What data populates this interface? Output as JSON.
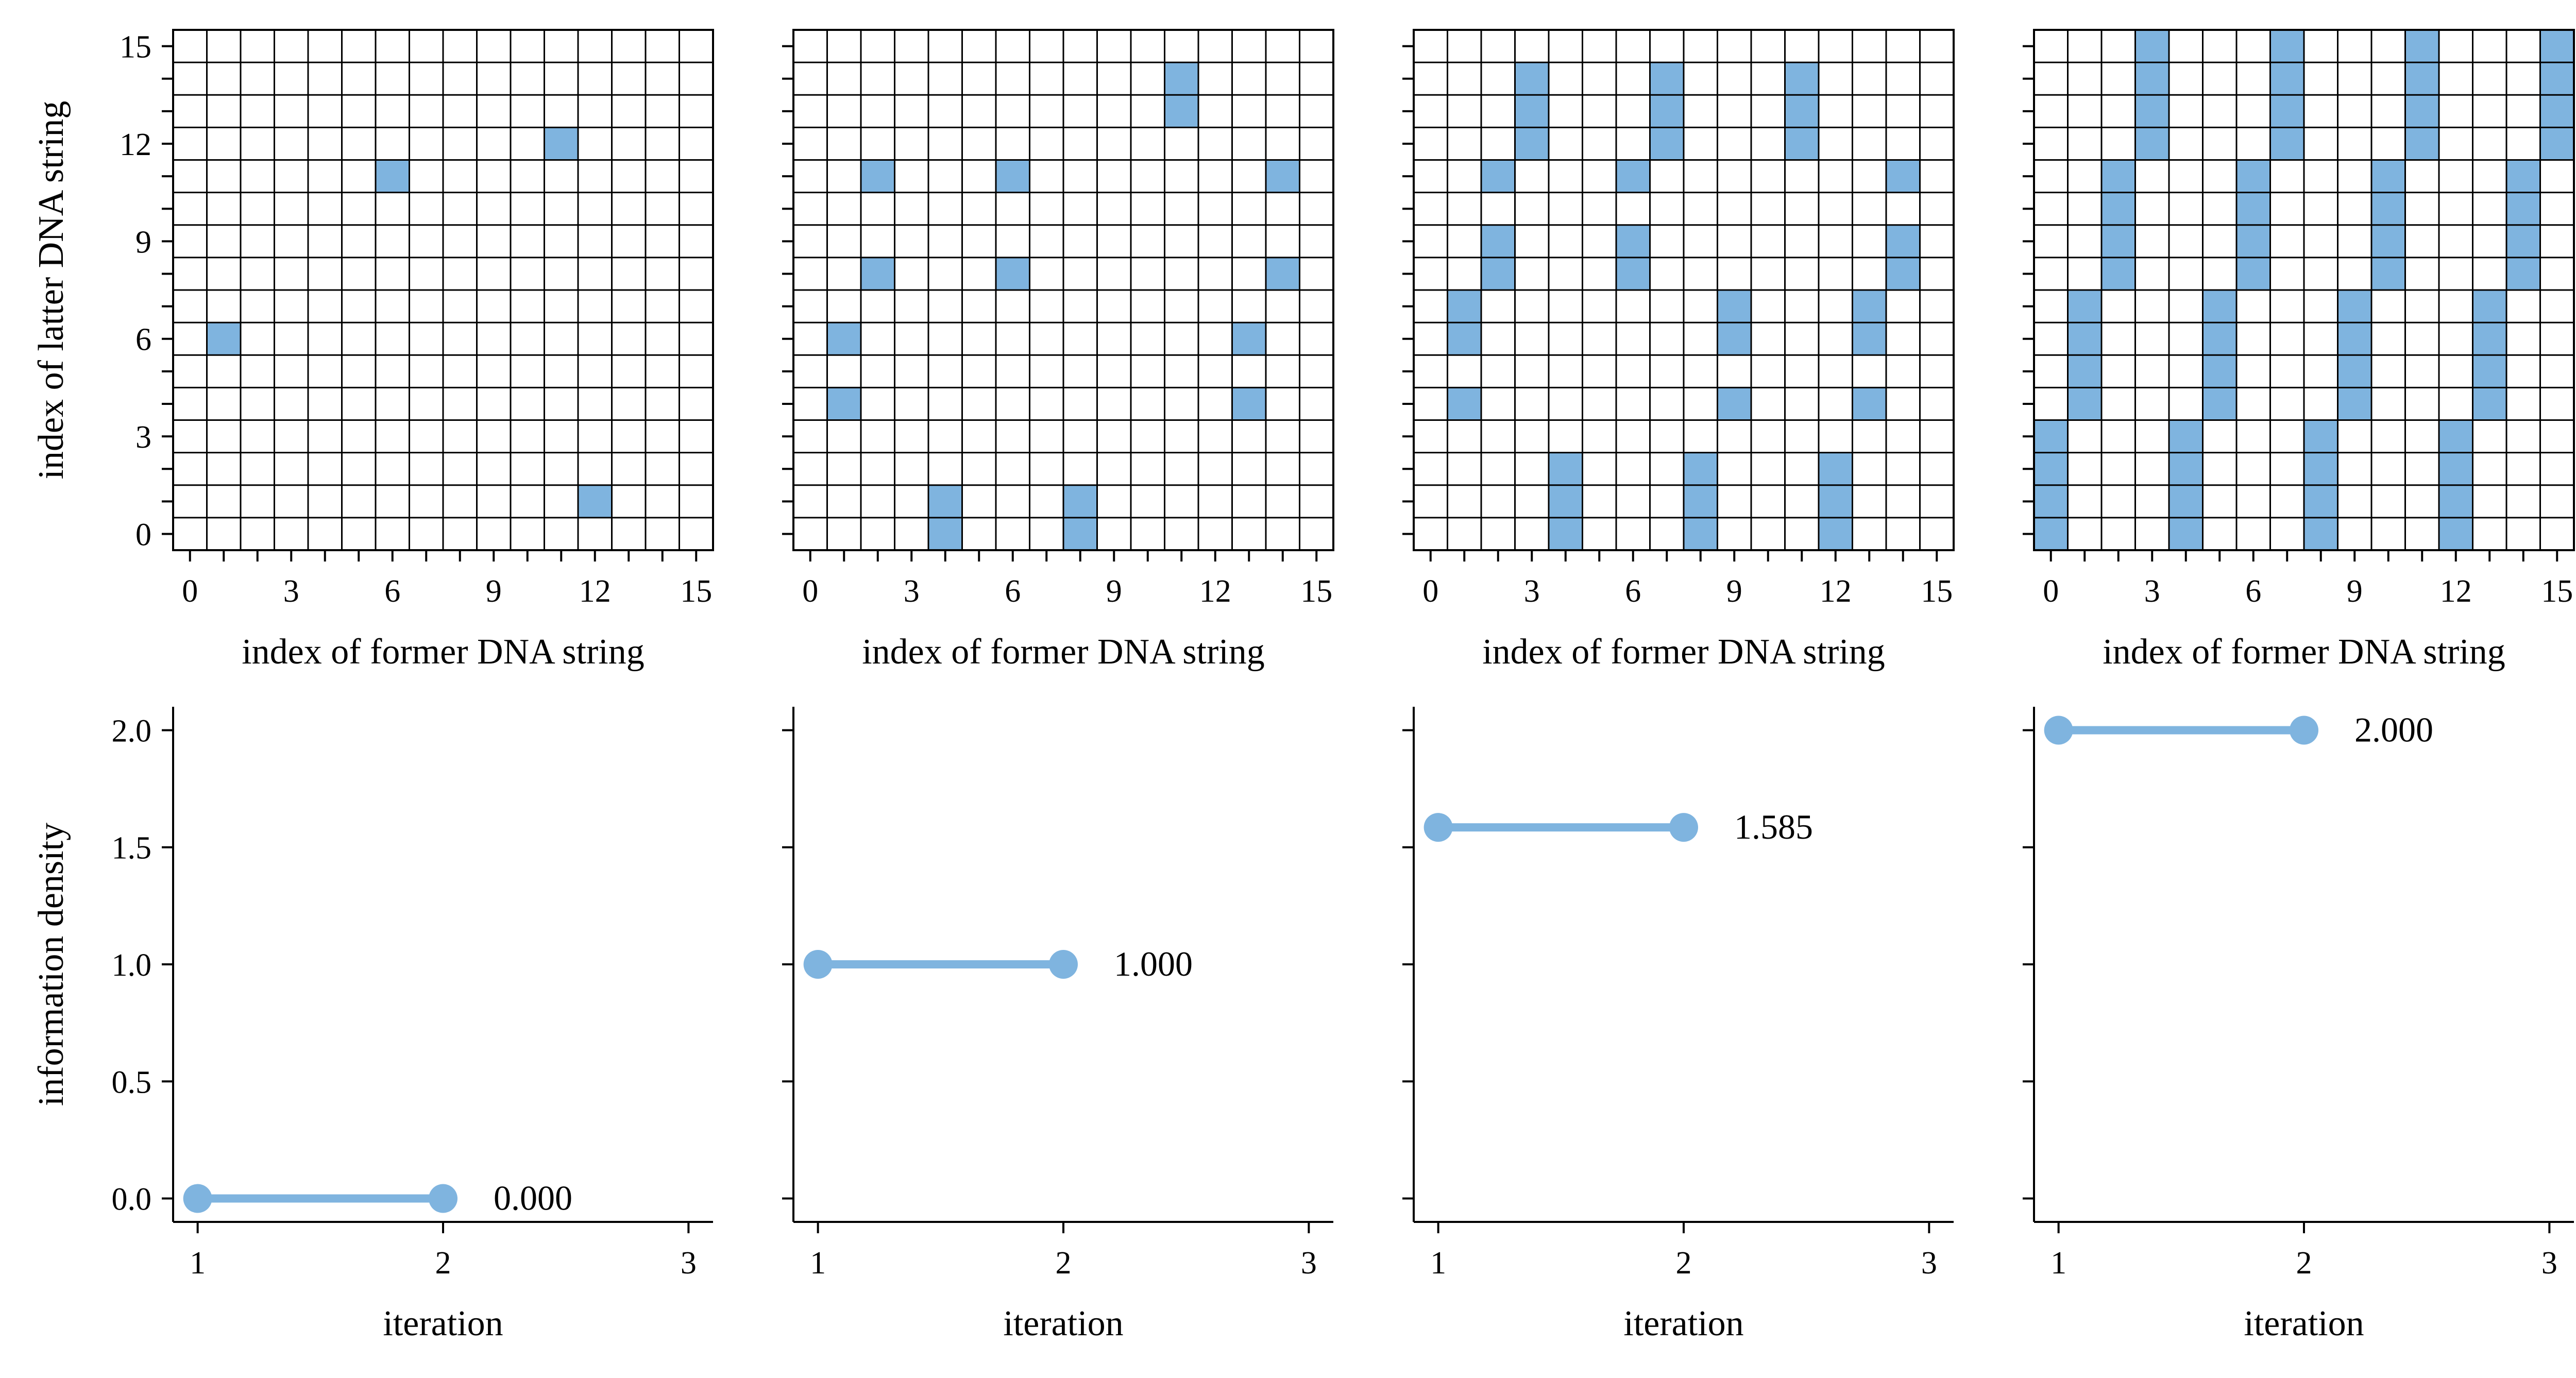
{
  "colors": {
    "cell": "#7fb4df",
    "line": "#7fb4df",
    "grid": "#000000"
  },
  "chart_data": [
    {
      "type": "heatmap",
      "panel": 1,
      "xlabel": "index of former DNA string",
      "ylabel": "index of latter DNA string",
      "grid_size": 16,
      "xlim": [
        0,
        15
      ],
      "ylim": [
        0,
        15
      ],
      "xticks": [
        "0",
        "3",
        "6",
        "9",
        "12",
        "15"
      ],
      "yticks": [
        "0",
        "3",
        "6",
        "9",
        "12",
        "15"
      ],
      "cells": [
        [
          1,
          6
        ],
        [
          6,
          11
        ],
        [
          11,
          12
        ],
        [
          12,
          1
        ]
      ]
    },
    {
      "type": "heatmap",
      "panel": 2,
      "xlabel": "index of former DNA string",
      "ylabel": "",
      "grid_size": 16,
      "xlim": [
        0,
        15
      ],
      "ylim": [
        0,
        15
      ],
      "xticks": [
        "0",
        "3",
        "6",
        "9",
        "12",
        "15"
      ],
      "yticks": [],
      "cells": [
        [
          1,
          4
        ],
        [
          1,
          6
        ],
        [
          2,
          8
        ],
        [
          2,
          11
        ],
        [
          4,
          0
        ],
        [
          4,
          1
        ],
        [
          6,
          8
        ],
        [
          6,
          11
        ],
        [
          8,
          0
        ],
        [
          8,
          1
        ],
        [
          11,
          13
        ],
        [
          11,
          14
        ],
        [
          13,
          4
        ],
        [
          13,
          6
        ],
        [
          14,
          8
        ],
        [
          14,
          11
        ]
      ]
    },
    {
      "type": "heatmap",
      "panel": 3,
      "xlabel": "index of former DNA string",
      "ylabel": "",
      "grid_size": 16,
      "xlim": [
        0,
        15
      ],
      "ylim": [
        0,
        15
      ],
      "xticks": [
        "0",
        "3",
        "6",
        "9",
        "12",
        "15"
      ],
      "yticks": [],
      "cells": [
        [
          1,
          4
        ],
        [
          1,
          6
        ],
        [
          1,
          7
        ],
        [
          2,
          8
        ],
        [
          2,
          9
        ],
        [
          2,
          11
        ],
        [
          3,
          12
        ],
        [
          3,
          13
        ],
        [
          3,
          14
        ],
        [
          4,
          0
        ],
        [
          4,
          1
        ],
        [
          4,
          2
        ],
        [
          6,
          8
        ],
        [
          6,
          9
        ],
        [
          6,
          11
        ],
        [
          7,
          12
        ],
        [
          7,
          13
        ],
        [
          7,
          14
        ],
        [
          8,
          0
        ],
        [
          8,
          1
        ],
        [
          8,
          2
        ],
        [
          9,
          4
        ],
        [
          9,
          6
        ],
        [
          9,
          7
        ],
        [
          11,
          12
        ],
        [
          11,
          13
        ],
        [
          11,
          14
        ],
        [
          12,
          0
        ],
        [
          12,
          1
        ],
        [
          12,
          2
        ],
        [
          13,
          4
        ],
        [
          13,
          6
        ],
        [
          13,
          7
        ],
        [
          14,
          8
        ],
        [
          14,
          9
        ],
        [
          14,
          11
        ]
      ]
    },
    {
      "type": "heatmap",
      "panel": 4,
      "xlabel": "index of former DNA string",
      "ylabel": "",
      "grid_size": 16,
      "xlim": [
        0,
        15
      ],
      "ylim": [
        0,
        15
      ],
      "xticks": [
        "0",
        "3",
        "6",
        "9",
        "12",
        "15"
      ],
      "yticks": [],
      "cells": [
        [
          0,
          0
        ],
        [
          0,
          1
        ],
        [
          0,
          2
        ],
        [
          0,
          3
        ],
        [
          1,
          4
        ],
        [
          1,
          5
        ],
        [
          1,
          6
        ],
        [
          1,
          7
        ],
        [
          2,
          8
        ],
        [
          2,
          9
        ],
        [
          2,
          10
        ],
        [
          2,
          11
        ],
        [
          3,
          12
        ],
        [
          3,
          13
        ],
        [
          3,
          14
        ],
        [
          3,
          15
        ],
        [
          4,
          0
        ],
        [
          4,
          1
        ],
        [
          4,
          2
        ],
        [
          4,
          3
        ],
        [
          5,
          4
        ],
        [
          5,
          5
        ],
        [
          5,
          6
        ],
        [
          5,
          7
        ],
        [
          6,
          8
        ],
        [
          6,
          9
        ],
        [
          6,
          10
        ],
        [
          6,
          11
        ],
        [
          7,
          12
        ],
        [
          7,
          13
        ],
        [
          7,
          14
        ],
        [
          7,
          15
        ],
        [
          8,
          0
        ],
        [
          8,
          1
        ],
        [
          8,
          2
        ],
        [
          8,
          3
        ],
        [
          9,
          4
        ],
        [
          9,
          5
        ],
        [
          9,
          6
        ],
        [
          9,
          7
        ],
        [
          10,
          8
        ],
        [
          10,
          9
        ],
        [
          10,
          10
        ],
        [
          10,
          11
        ],
        [
          11,
          12
        ],
        [
          11,
          13
        ],
        [
          11,
          14
        ],
        [
          11,
          15
        ],
        [
          12,
          0
        ],
        [
          12,
          1
        ],
        [
          12,
          2
        ],
        [
          12,
          3
        ],
        [
          13,
          4
        ],
        [
          13,
          5
        ],
        [
          13,
          6
        ],
        [
          13,
          7
        ],
        [
          14,
          8
        ],
        [
          14,
          9
        ],
        [
          14,
          10
        ],
        [
          14,
          11
        ],
        [
          15,
          12
        ],
        [
          15,
          13
        ],
        [
          15,
          14
        ],
        [
          15,
          15
        ]
      ]
    },
    {
      "type": "line",
      "panel": 1,
      "xlabel": "iteration",
      "ylabel": "information density",
      "x": [
        1,
        2
      ],
      "y": [
        0.0,
        0.0
      ],
      "value_label": "0.000",
      "xlim": [
        0.9,
        3.1
      ],
      "ylim": [
        -0.1,
        2.1
      ],
      "xticks": [
        "1",
        "2",
        "3"
      ],
      "yticks": [
        "0.0",
        "0.5",
        "1.0",
        "1.5",
        "2.0"
      ]
    },
    {
      "type": "line",
      "panel": 2,
      "xlabel": "iteration",
      "ylabel": "",
      "x": [
        1,
        2
      ],
      "y": [
        1.0,
        1.0
      ],
      "value_label": "1.000",
      "xlim": [
        0.9,
        3.1
      ],
      "ylim": [
        -0.1,
        2.1
      ],
      "xticks": [
        "1",
        "2",
        "3"
      ],
      "yticks": []
    },
    {
      "type": "line",
      "panel": 3,
      "xlabel": "iteration",
      "ylabel": "",
      "x": [
        1,
        2
      ],
      "y": [
        1.585,
        1.585
      ],
      "value_label": "1.585",
      "xlim": [
        0.9,
        3.1
      ],
      "ylim": [
        -0.1,
        2.1
      ],
      "xticks": [
        "1",
        "2",
        "3"
      ],
      "yticks": []
    },
    {
      "type": "line",
      "panel": 4,
      "xlabel": "iteration",
      "ylabel": "",
      "x": [
        1,
        2
      ],
      "y": [
        2.0,
        2.0
      ],
      "value_label": "2.000",
      "xlim": [
        0.9,
        3.1
      ],
      "ylim": [
        -0.1,
        2.1
      ],
      "xticks": [
        "1",
        "2",
        "3"
      ],
      "yticks": []
    }
  ]
}
